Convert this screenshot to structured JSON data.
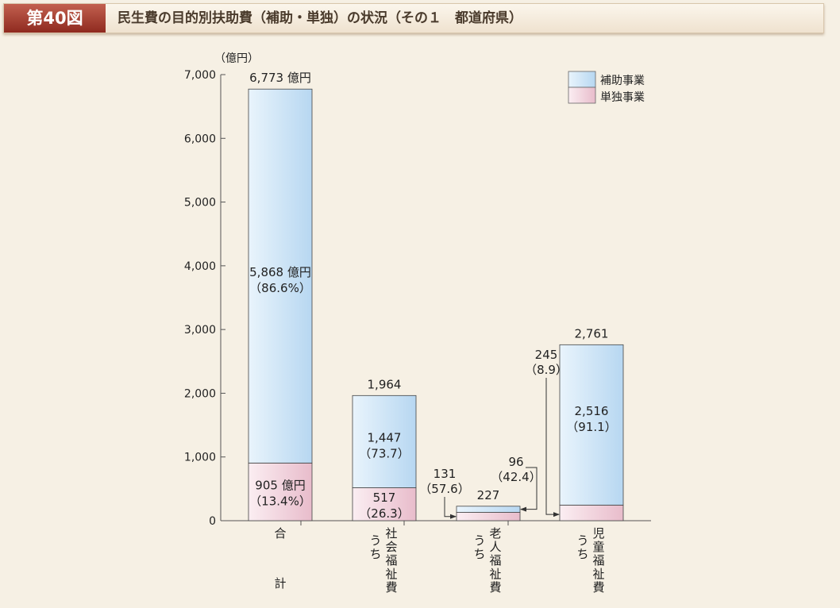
{
  "header": {
    "figure_number": "第40図",
    "title": "民生費の目的別扶助費（補助・単独）の状況（その１　都道府県）"
  },
  "colors": {
    "subsidized": "#cde5f7",
    "independent": "#f2d3dd",
    "axis": "#555555",
    "text": "#222222"
  },
  "chart_data": {
    "type": "bar",
    "stacked": true,
    "ylabel": "（億円）",
    "ylim": [
      0,
      7000
    ],
    "yticks": [
      "0",
      "1,000",
      "2,000",
      "3,000",
      "4,000",
      "5,000",
      "6,000",
      "7,000"
    ],
    "categories": [
      {
        "label": "合計"
      },
      {
        "label": "社会福祉費",
        "prefix": "うち"
      },
      {
        "label": "老人福祉費",
        "prefix": "うち"
      },
      {
        "label": "児童福祉費",
        "prefix": "うち"
      }
    ],
    "series": [
      {
        "name": "単独事業",
        "values": [
          905,
          517,
          131,
          245
        ]
      },
      {
        "name": "補助事業",
        "values": [
          5868,
          1447,
          96,
          2516
        ]
      }
    ],
    "totals": [
      6773,
      1964,
      227,
      2761
    ],
    "total_labels": [
      "6,773 億円",
      "1,964",
      "227",
      "2,761"
    ],
    "data_labels": [
      {
        "subsidized": [
          "5,868 億円",
          "（86.6%）"
        ],
        "independent": [
          "905 億円",
          "（13.4%）"
        ]
      },
      {
        "subsidized": [
          "1,447",
          "（73.7）"
        ],
        "independent": [
          "517",
          "（26.3）"
        ]
      },
      {
        "subsidized": [
          "96",
          "（42.4）"
        ],
        "independent": [
          "131",
          "（57.6）"
        ]
      },
      {
        "subsidized": [
          "2,516",
          "（91.1）"
        ],
        "independent": [
          "245",
          "（8.9）"
        ]
      }
    ],
    "legend": {
      "position": "top-right",
      "entries": [
        "補助事業",
        "単独事業"
      ]
    },
    "grid": false
  }
}
